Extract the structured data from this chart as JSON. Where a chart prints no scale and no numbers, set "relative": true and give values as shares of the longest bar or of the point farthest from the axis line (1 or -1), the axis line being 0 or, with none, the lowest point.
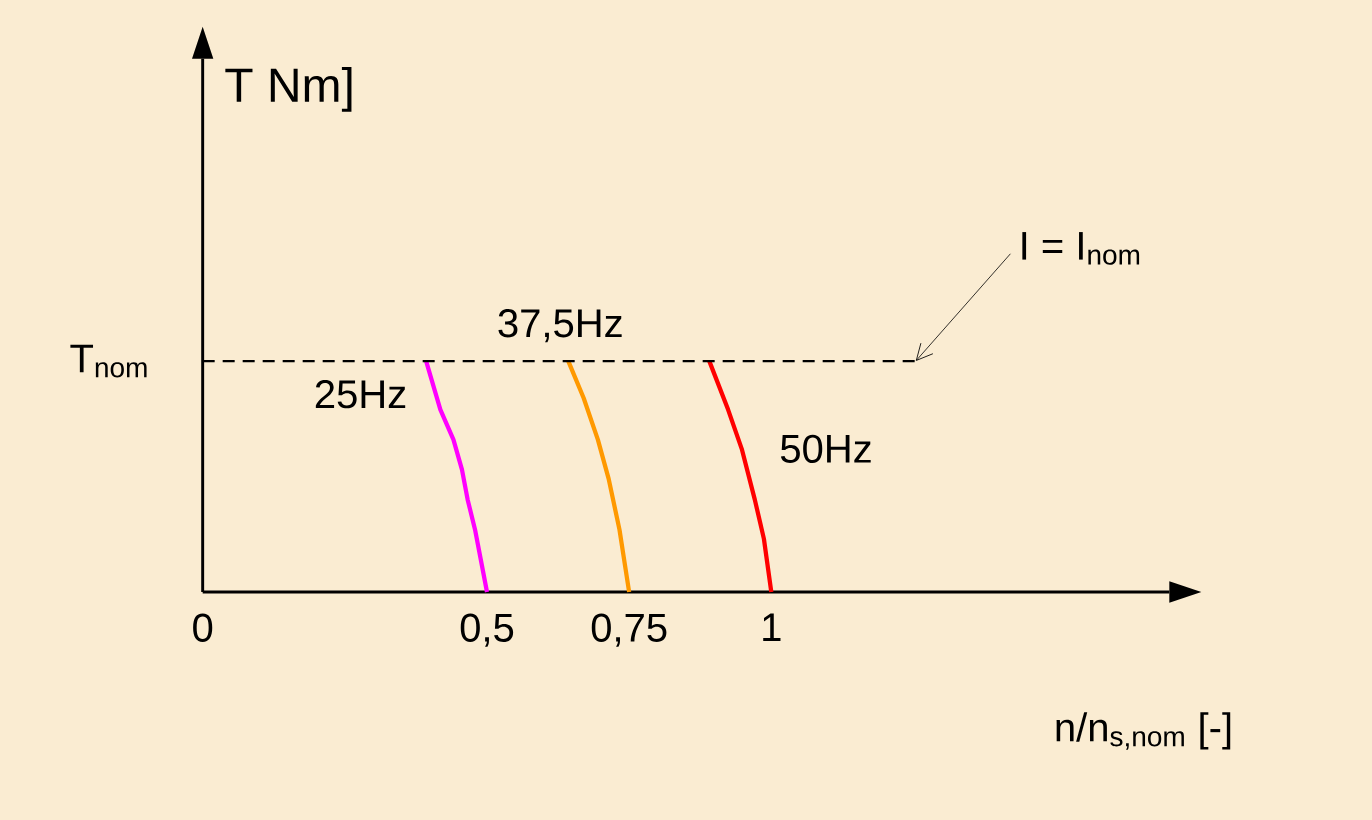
{
  "chart_data": {
    "type": "line",
    "relative": true,
    "xlabel": "n/n$_{s,nom}$ [-]",
    "xlim": [
      0,
      1.7
    ],
    "xticks": [
      0,
      {
        "value": 0.5,
        "label": "0,5"
      },
      {
        "value": 0.75,
        "label": "0,75"
      },
      1
    ],
    "series": [
      {
        "name": "25Hz",
        "color": "#ff00ff",
        "x": [
          0.393,
          0.418,
          0.441,
          0.456,
          0.466,
          0.479,
          0.5
        ],
        "values": [
          1,
          0.79,
          0.66,
          0.53,
          0.4,
          0.27,
          0
        ]
      },
      {
        "name": "37,5Hz",
        "color": "#ff9900",
        "x": [
          0.643,
          0.67,
          0.695,
          0.714,
          0.733,
          0.75
        ],
        "values": [
          1,
          0.84,
          0.66,
          0.49,
          0.27,
          0
        ]
      },
      {
        "name": "50Hz",
        "color": "#ff0000",
        "x": [
          0.891,
          0.924,
          0.948,
          0.971,
          0.987,
          1
        ],
        "values": [
          1,
          0.79,
          0.62,
          0.4,
          0.23,
          0
        ]
      }
    ],
    "ref_lines": [
      {
        "axis": "y",
        "value": 1,
        "label": "T$_{nom}$",
        "color": "#000000",
        "line_style": "dashed"
      }
    ],
    "annotations": [
      {
        "text": "I = I$_{nom}$",
        "x": 1.254,
        "y": 1
      },
      "T Nm]"
    ],
    "grid": false,
    "legend": false,
    "marker": "none",
    "line_style": "solid"
  }
}
